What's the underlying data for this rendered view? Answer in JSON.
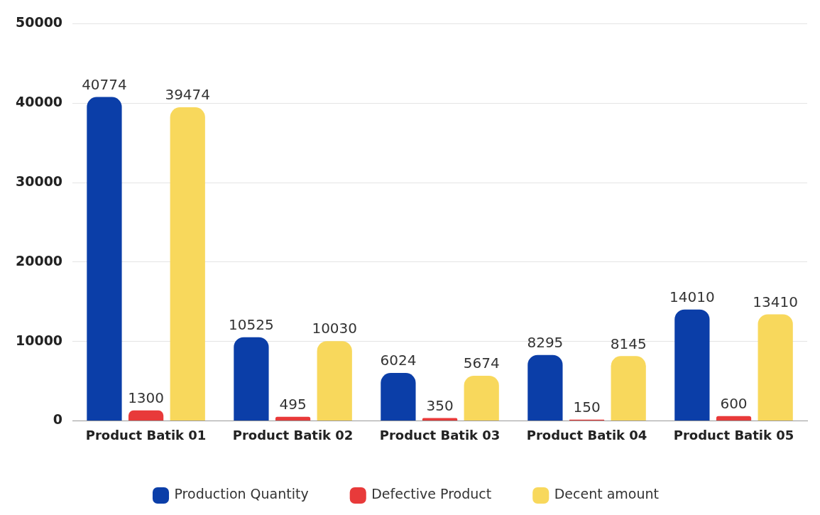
{
  "chart_data": {
    "type": "bar",
    "categories": [
      "Product Batik 01",
      "Product Batik 02",
      "Product Batik 03",
      "Product Batik 04",
      "Product Batik 05"
    ],
    "series": [
      {
        "name": "Production Quantity",
        "color": "#0b3ea8",
        "values": [
          40774,
          10525,
          6024,
          8295,
          14010
        ]
      },
      {
        "name": "Defective Product",
        "color": "#e83a3a",
        "values": [
          1300,
          495,
          350,
          150,
          600
        ]
      },
      {
        "name": "Decent amount",
        "color": "#f8d85c",
        "values": [
          39474,
          10030,
          5674,
          8145,
          13410
        ]
      }
    ],
    "ylim": [
      0,
      50000
    ],
    "yticks": [
      0,
      10000,
      20000,
      30000,
      40000,
      50000
    ],
    "grid": "y",
    "legend": "bottom",
    "data_labels": true
  }
}
